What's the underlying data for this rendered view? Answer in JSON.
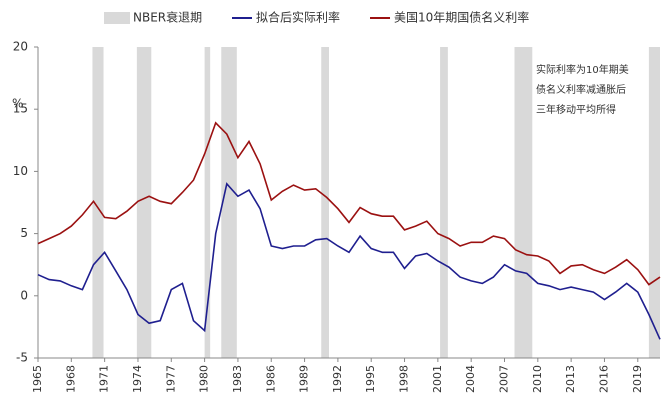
{
  "chart_data": {
    "type": "line",
    "x": [
      1965,
      1966,
      1967,
      1968,
      1969,
      1970,
      1971,
      1972,
      1973,
      1974,
      1975,
      1976,
      1977,
      1978,
      1979,
      1980,
      1981,
      1982,
      1983,
      1984,
      1985,
      1986,
      1987,
      1988,
      1989,
      1990,
      1991,
      1992,
      1993,
      1994,
      1995,
      1996,
      1997,
      1998,
      1999,
      2000,
      2001,
      2002,
      2003,
      2004,
      2005,
      2006,
      2007,
      2008,
      2009,
      2010,
      2011,
      2012,
      2013,
      2014,
      2015,
      2016,
      2017,
      2018,
      2019,
      2020,
      2021
    ],
    "series": [
      {
        "name": "拟合后实际利率",
        "color": "#1f1f8f",
        "values": [
          1.7,
          1.3,
          1.2,
          0.8,
          0.5,
          2.5,
          3.5,
          2.0,
          0.5,
          -1.5,
          -2.2,
          -2.0,
          0.5,
          1.0,
          -2.0,
          -2.8,
          5.0,
          9.0,
          8.0,
          8.5,
          7.0,
          4.0,
          3.8,
          4.0,
          4.0,
          4.5,
          4.6,
          4.0,
          3.5,
          4.8,
          3.8,
          3.5,
          3.5,
          2.2,
          3.2,
          3.4,
          2.8,
          2.3,
          1.5,
          1.2,
          1.0,
          1.5,
          2.5,
          2.0,
          1.8,
          1.0,
          0.8,
          0.5,
          0.7,
          0.5,
          0.3,
          -0.3,
          0.3,
          1.0,
          0.3,
          -1.5,
          -3.5
        ]
      },
      {
        "name": "美国10年期国债名义利率",
        "color": "#9b1111",
        "values": [
          4.2,
          4.6,
          5.0,
          5.6,
          6.5,
          7.6,
          6.3,
          6.2,
          6.8,
          7.6,
          8.0,
          7.6,
          7.4,
          8.3,
          9.3,
          11.4,
          13.9,
          13.0,
          11.1,
          12.4,
          10.6,
          7.7,
          8.4,
          8.9,
          8.5,
          8.6,
          7.9,
          7.0,
          5.9,
          7.1,
          6.6,
          6.4,
          6.4,
          5.3,
          5.6,
          6.0,
          5.0,
          4.6,
          4.0,
          4.3,
          4.3,
          4.8,
          4.6,
          3.7,
          3.3,
          3.2,
          2.8,
          1.8,
          2.4,
          2.5,
          2.1,
          1.8,
          2.3,
          2.9,
          2.1,
          0.9,
          1.5
        ]
      }
    ],
    "recessions": {
      "name": "NBER衰退期",
      "color": "#d9d9d9",
      "periods": [
        [
          1969.9,
          1970.9
        ],
        [
          1973.9,
          1975.2
        ],
        [
          1980.0,
          1980.5
        ],
        [
          1981.5,
          1982.9
        ],
        [
          1990.5,
          1991.2
        ],
        [
          2001.2,
          2001.9
        ],
        [
          2007.9,
          2009.5
        ],
        [
          2020.0,
          2021.0
        ]
      ]
    },
    "xlim": [
      1965,
      2021
    ],
    "xticks": [
      1965,
      1968,
      1971,
      1974,
      1977,
      1980,
      1983,
      1986,
      1989,
      1992,
      1995,
      1998,
      2001,
      2004,
      2007,
      2010,
      2013,
      2016,
      2019
    ],
    "ylim": [
      -5,
      20
    ],
    "yticks": [
      -5,
      0,
      5,
      10,
      15,
      20
    ],
    "y_unit": "%",
    "annotation": [
      "实际利率为10年期美",
      "债名义利率减通胀后",
      "三年移动平均所得"
    ]
  }
}
